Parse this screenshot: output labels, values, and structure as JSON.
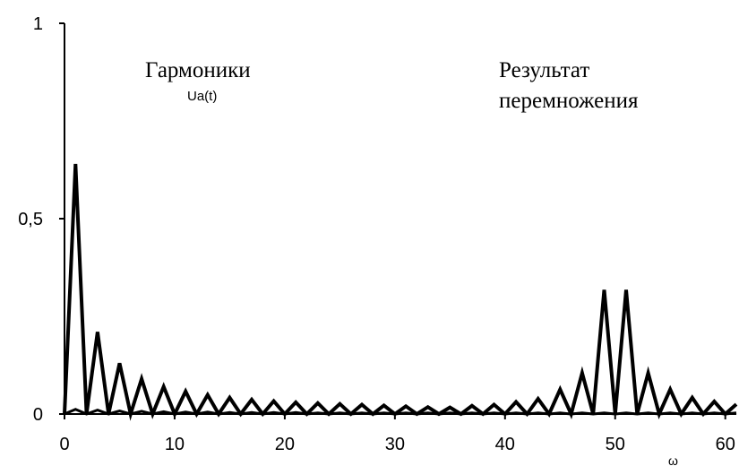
{
  "chart_data": {
    "type": "line",
    "xlabel": "ω",
    "ylabel": "",
    "xlim": [
      0,
      61
    ],
    "ylim": [
      0,
      1
    ],
    "grid": false,
    "x_ticks": [
      "0",
      "10",
      "20",
      "30",
      "40",
      "50",
      "60"
    ],
    "y_ticks": [
      "0",
      "0,5",
      "1"
    ],
    "annotations": {
      "harmonics": "Гармоники",
      "harmonics_sub": "Ua(t)",
      "result_line1": "Результат",
      "result_line2": "перемножения"
    },
    "series": [
      {
        "x": [
          0,
          1,
          2,
          3,
          4,
          5,
          6,
          7,
          8,
          9,
          10,
          11,
          12,
          13,
          14,
          15,
          16,
          17,
          18,
          19,
          20,
          21,
          22,
          23,
          24,
          25,
          26,
          27,
          28,
          29,
          30,
          31,
          32,
          33,
          34,
          35,
          36,
          37,
          38,
          39,
          40,
          41,
          42,
          43,
          44,
          45,
          46,
          47,
          48,
          49,
          50,
          51,
          52,
          53,
          54,
          55,
          56,
          57,
          58,
          59,
          60,
          61
        ],
        "values": [
          0,
          0.64,
          0,
          0.21,
          0,
          0.13,
          0,
          0.09,
          0,
          0.07,
          0,
          0.058,
          0,
          0.049,
          0,
          0.042,
          0,
          0.037,
          0,
          0.033,
          0,
          0.03,
          0,
          0.028,
          0,
          0.026,
          0,
          0.024,
          0,
          0.022,
          0,
          0.02,
          0,
          0.018,
          0,
          0.017,
          0,
          0.021,
          0,
          0.024,
          0,
          0.031,
          0,
          0.039,
          0,
          0.063,
          0,
          0.105,
          0,
          0.318,
          0,
          0.318,
          0,
          0.105,
          0,
          0.063,
          0,
          0.042,
          0,
          0.032,
          0,
          0.025
        ]
      },
      {
        "x": [
          0,
          1,
          2,
          3,
          4,
          5,
          6,
          7,
          8,
          9,
          10,
          11,
          12,
          13,
          14,
          15,
          16,
          17,
          18,
          19,
          20,
          21,
          22,
          23,
          24,
          25,
          26,
          27,
          28,
          29,
          30,
          31,
          32,
          33,
          34,
          35,
          36,
          37,
          38,
          39,
          40,
          41,
          42,
          43,
          44,
          45,
          46,
          47,
          48,
          49,
          50,
          51,
          52,
          53,
          54,
          55,
          56,
          57,
          58,
          59,
          60,
          61
        ],
        "values": [
          0,
          0.012,
          0,
          0.01,
          0,
          0.008,
          0,
          0.007,
          0,
          0.006,
          0,
          0.005,
          0,
          0.005,
          0,
          0.004,
          0,
          0.004,
          0,
          0.004,
          0,
          0.004,
          0,
          0.003,
          0,
          0.003,
          0,
          0.003,
          0,
          0.003,
          0,
          0.003,
          0,
          0.003,
          0,
          0.003,
          0,
          0.003,
          0,
          0.003,
          0,
          0.003,
          0,
          0.003,
          0,
          0.003,
          0,
          0.003,
          0,
          0.003,
          0,
          0.003,
          0,
          0.003,
          0,
          0.003,
          0,
          0.003,
          0,
          0.003,
          0,
          0.003
        ]
      }
    ]
  },
  "style": {
    "line_color": "#000000",
    "axis_color": "#000000"
  }
}
